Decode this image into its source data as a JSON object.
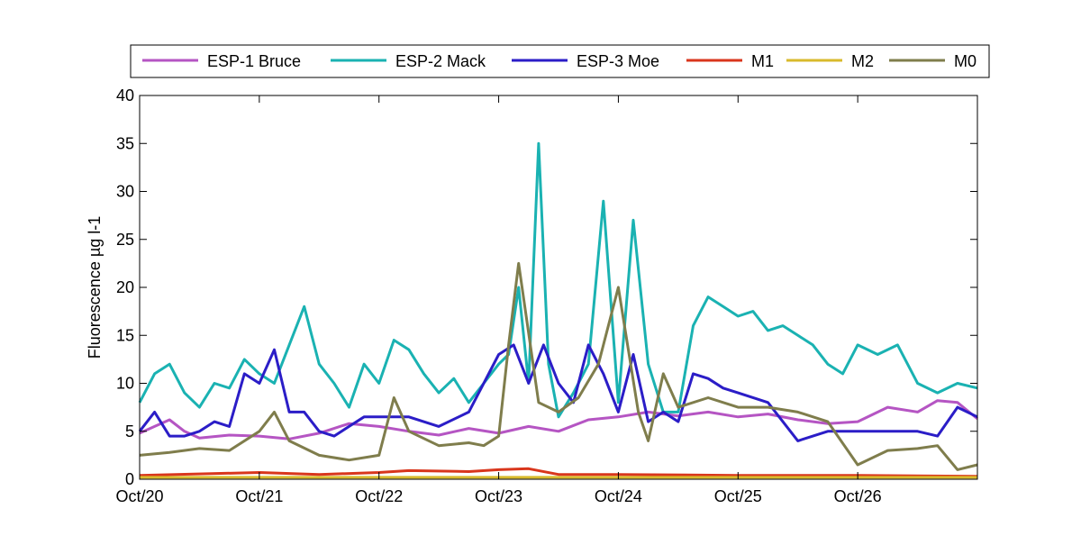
{
  "chart_data": {
    "type": "line",
    "title": "",
    "xlabel": "",
    "ylabel": "Fluorescence µg l-1",
    "xlim": [
      "2000-10-20T00:00",
      "2000-10-27T00:00"
    ],
    "ylim": [
      0,
      40
    ],
    "x_ticks": [
      "Oct/20",
      "Oct/21",
      "Oct/22",
      "Oct/23",
      "Oct/24",
      "Oct/25",
      "Oct/26"
    ],
    "x_tick_dates": [
      "2000-10-20T00:00",
      "2000-10-21T00:00",
      "2000-10-22T00:00",
      "2000-10-23T00:00",
      "2000-10-24T00:00",
      "2000-10-25T00:00",
      "2000-10-26T00:00"
    ],
    "y_ticks": [
      0,
      5,
      10,
      15,
      20,
      25,
      30,
      35,
      40
    ],
    "y_tick_labels": [
      "0",
      "5",
      "10",
      "15",
      "20",
      "25",
      "30",
      "35",
      "40"
    ],
    "grid": false,
    "legend_position": "top",
    "series": [
      {
        "name": "ESP-1 Bruce",
        "color": "#b555c3",
        "x": [
          "2000-10-20T00:00",
          "2000-10-20T03:00",
          "2000-10-20T06:00",
          "2000-10-20T09:00",
          "2000-10-20T12:00",
          "2000-10-20T18:00",
          "2000-10-21T00:00",
          "2000-10-21T06:00",
          "2000-10-21T12:00",
          "2000-10-21T18:00",
          "2000-10-22T00:00",
          "2000-10-22T06:00",
          "2000-10-22T12:00",
          "2000-10-22T18:00",
          "2000-10-23T00:00",
          "2000-10-23T06:00",
          "2000-10-23T12:00",
          "2000-10-23T18:00",
          "2000-10-24T00:00",
          "2000-10-24T06:00",
          "2000-10-24T12:00",
          "2000-10-24T18:00",
          "2000-10-25T00:00",
          "2000-10-25T06:00",
          "2000-10-25T12:00",
          "2000-10-25T18:00",
          "2000-10-26T00:00",
          "2000-10-26T06:00",
          "2000-10-26T12:00",
          "2000-10-26T16:00",
          "2000-10-26T20:00",
          "2000-10-27T00:00"
        ],
        "y": [
          4.8,
          5.5,
          6.2,
          5.0,
          4.3,
          4.6,
          4.5,
          4.2,
          4.8,
          5.8,
          5.5,
          5.0,
          4.6,
          5.3,
          4.8,
          5.5,
          5.0,
          6.2,
          6.5,
          7.0,
          6.6,
          7.0,
          6.5,
          6.8,
          6.2,
          5.8,
          6.0,
          7.5,
          7.0,
          8.2,
          8.0,
          6.3
        ]
      },
      {
        "name": "ESP-2 Mack",
        "color": "#1ab2b2",
        "x": [
          "2000-10-20T00:00",
          "2000-10-20T03:00",
          "2000-10-20T06:00",
          "2000-10-20T09:00",
          "2000-10-20T12:00",
          "2000-10-20T15:00",
          "2000-10-20T18:00",
          "2000-10-20T21:00",
          "2000-10-21T00:00",
          "2000-10-21T03:00",
          "2000-10-21T06:00",
          "2000-10-21T09:00",
          "2000-10-21T12:00",
          "2000-10-21T15:00",
          "2000-10-21T18:00",
          "2000-10-21T21:00",
          "2000-10-22T00:00",
          "2000-10-22T03:00",
          "2000-10-22T06:00",
          "2000-10-22T09:00",
          "2000-10-22T12:00",
          "2000-10-22T15:00",
          "2000-10-22T18:00",
          "2000-10-22T21:00",
          "2000-10-23T00:00",
          "2000-10-23T02:00",
          "2000-10-23T04:00",
          "2000-10-23T06:00",
          "2000-10-23T08:00",
          "2000-10-23T10:00",
          "2000-10-23T12:00",
          "2000-10-23T15:00",
          "2000-10-23T18:00",
          "2000-10-23T21:00",
          "2000-10-24T00:00",
          "2000-10-24T03:00",
          "2000-10-24T06:00",
          "2000-10-24T09:00",
          "2000-10-24T12:00",
          "2000-10-24T15:00",
          "2000-10-24T18:00",
          "2000-10-24T21:00",
          "2000-10-25T00:00",
          "2000-10-25T03:00",
          "2000-10-25T06:00",
          "2000-10-25T09:00",
          "2000-10-25T12:00",
          "2000-10-25T15:00",
          "2000-10-25T18:00",
          "2000-10-25T21:00",
          "2000-10-26T00:00",
          "2000-10-26T04:00",
          "2000-10-26T08:00",
          "2000-10-26T12:00",
          "2000-10-26T16:00",
          "2000-10-26T20:00",
          "2000-10-27T00:00"
        ],
        "y": [
          8,
          11,
          12,
          9,
          7.5,
          10,
          9.5,
          12.5,
          11,
          10,
          14,
          18,
          12,
          10,
          7.5,
          12,
          10,
          14.5,
          13.5,
          11,
          9,
          10.5,
          8,
          10,
          12,
          13,
          20,
          10,
          35,
          12,
          6.5,
          9,
          12,
          29,
          8,
          27,
          12,
          7,
          7,
          16,
          19,
          18,
          17,
          17.5,
          15.5,
          16,
          15,
          14,
          12,
          11,
          14,
          13,
          14,
          10,
          9,
          10,
          9.5
        ]
      },
      {
        "name": "ESP-3 Moe",
        "color": "#2b1dc7",
        "x": [
          "2000-10-20T00:00",
          "2000-10-20T03:00",
          "2000-10-20T06:00",
          "2000-10-20T09:00",
          "2000-10-20T12:00",
          "2000-10-20T15:00",
          "2000-10-20T18:00",
          "2000-10-20T21:00",
          "2000-10-21T00:00",
          "2000-10-21T03:00",
          "2000-10-21T06:00",
          "2000-10-21T09:00",
          "2000-10-21T12:00",
          "2000-10-21T15:00",
          "2000-10-21T18:00",
          "2000-10-21T21:00",
          "2000-10-22T00:00",
          "2000-10-22T06:00",
          "2000-10-22T12:00",
          "2000-10-22T18:00",
          "2000-10-23T00:00",
          "2000-10-23T03:00",
          "2000-10-23T06:00",
          "2000-10-23T09:00",
          "2000-10-23T12:00",
          "2000-10-23T15:00",
          "2000-10-23T18:00",
          "2000-10-23T21:00",
          "2000-10-24T00:00",
          "2000-10-24T03:00",
          "2000-10-24T06:00",
          "2000-10-24T09:00",
          "2000-10-24T12:00",
          "2000-10-24T15:00",
          "2000-10-24T18:00",
          "2000-10-24T21:00",
          "2000-10-25T00:00",
          "2000-10-25T06:00",
          "2000-10-25T12:00",
          "2000-10-25T18:00",
          "2000-10-26T00:00",
          "2000-10-26T06:00",
          "2000-10-26T12:00",
          "2000-10-26T16:00",
          "2000-10-26T20:00",
          "2000-10-27T00:00"
        ],
        "y": [
          5,
          7,
          4.5,
          4.5,
          5,
          6,
          5.5,
          11,
          10,
          13.5,
          7,
          7,
          5,
          4.5,
          5.5,
          6.5,
          6.5,
          6.5,
          5.5,
          7,
          13,
          14,
          10,
          14,
          10,
          8,
          14,
          11,
          7,
          13,
          6,
          7,
          6,
          11,
          10.5,
          9.5,
          9,
          8,
          4,
          5,
          5,
          5,
          5,
          4.5,
          7.5,
          6.5
        ]
      },
      {
        "name": "M1",
        "color": "#d9361c",
        "x": [
          "2000-10-20T00:00",
          "2000-10-21T00:00",
          "2000-10-21T12:00",
          "2000-10-22T00:00",
          "2000-10-22T06:00",
          "2000-10-22T18:00",
          "2000-10-23T00:00",
          "2000-10-23T06:00",
          "2000-10-23T12:00",
          "2000-10-24T00:00",
          "2000-10-25T00:00",
          "2000-10-26T00:00",
          "2000-10-27T00:00"
        ],
        "y": [
          0.4,
          0.7,
          0.5,
          0.7,
          0.9,
          0.8,
          1.0,
          1.1,
          0.5,
          0.5,
          0.4,
          0.4,
          0.3
        ]
      },
      {
        "name": "M2",
        "color": "#d8ba2c",
        "x": [
          "2000-10-20T00:00",
          "2000-10-21T00:00",
          "2000-10-22T00:00",
          "2000-10-23T00:00",
          "2000-10-24T00:00",
          "2000-10-25T00:00",
          "2000-10-26T00:00",
          "2000-10-27T00:00"
        ],
        "y": [
          0.2,
          0.2,
          0.2,
          0.2,
          0.2,
          0.2,
          0.2,
          0.2
        ]
      },
      {
        "name": "M0",
        "color": "#7f7d4c",
        "x": [
          "2000-10-20T00:00",
          "2000-10-20T06:00",
          "2000-10-20T12:00",
          "2000-10-20T18:00",
          "2000-10-21T00:00",
          "2000-10-21T03:00",
          "2000-10-21T06:00",
          "2000-10-21T12:00",
          "2000-10-21T18:00",
          "2000-10-22T00:00",
          "2000-10-22T03:00",
          "2000-10-22T06:00",
          "2000-10-22T12:00",
          "2000-10-22T18:00",
          "2000-10-22T21:00",
          "2000-10-23T00:00",
          "2000-10-23T02:00",
          "2000-10-23T04:00",
          "2000-10-23T08:00",
          "2000-10-23T12:00",
          "2000-10-23T16:00",
          "2000-10-23T20:00",
          "2000-10-24T00:00",
          "2000-10-24T04:00",
          "2000-10-24T06:00",
          "2000-10-24T09:00",
          "2000-10-24T12:00",
          "2000-10-24T18:00",
          "2000-10-25T00:00",
          "2000-10-25T06:00",
          "2000-10-25T12:00",
          "2000-10-25T18:00",
          "2000-10-26T00:00",
          "2000-10-26T06:00",
          "2000-10-26T12:00",
          "2000-10-26T16:00",
          "2000-10-26T20:00",
          "2000-10-27T00:00"
        ],
        "y": [
          2.5,
          2.8,
          3.2,
          3.0,
          5.0,
          7.0,
          4.0,
          2.5,
          2.0,
          2.5,
          8.5,
          5.0,
          3.5,
          3.8,
          3.5,
          4.5,
          14,
          22.5,
          8,
          7,
          8.5,
          12,
          20,
          7,
          4,
          11,
          7.5,
          8.5,
          7.5,
          7.5,
          7.0,
          6.0,
          1.5,
          3.0,
          3.2,
          3.5,
          1.0,
          1.5
        ]
      }
    ]
  }
}
